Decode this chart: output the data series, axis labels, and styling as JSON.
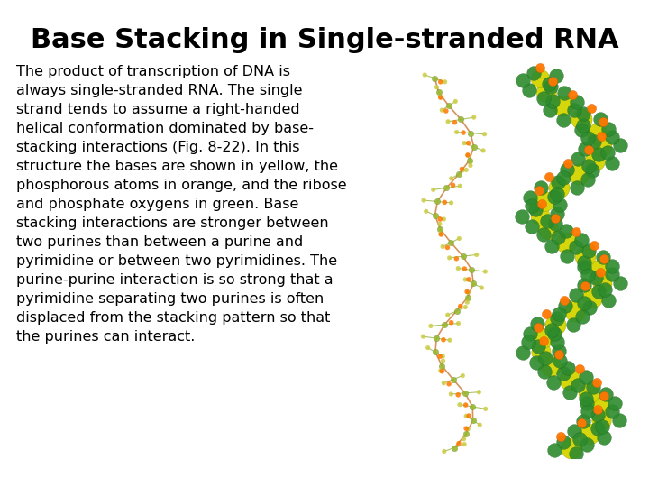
{
  "title": "Base Stacking in Single-stranded RNA",
  "body_text": "The product of transcription of DNA is\nalways single-stranded RNA. The single\nstrand tends to assume a right-handed\nhelical conformation dominated by base-\nstacking interactions (Fig. 8-22). In this\nstructure the bases are shown in yellow, the\nphosphorous atoms in orange, and the ribose\nand phosphate oxygens in green. Base\nstacking interactions are stronger between\ntwo purines than between a purine and\npyrimidine or between two pyrimidines. The\npurine-purine interaction is so strong that a\npyrimidine separating two purines is often\ndisplaced from the stacking pattern so that\nthe purines can interact.",
  "background_color": "#ffffff",
  "title_color": "#000000",
  "body_color": "#000000",
  "title_fontsize": 22,
  "body_fontsize": 11.5,
  "title_font": "DejaVu Sans",
  "body_font": "DejaVu Sans"
}
